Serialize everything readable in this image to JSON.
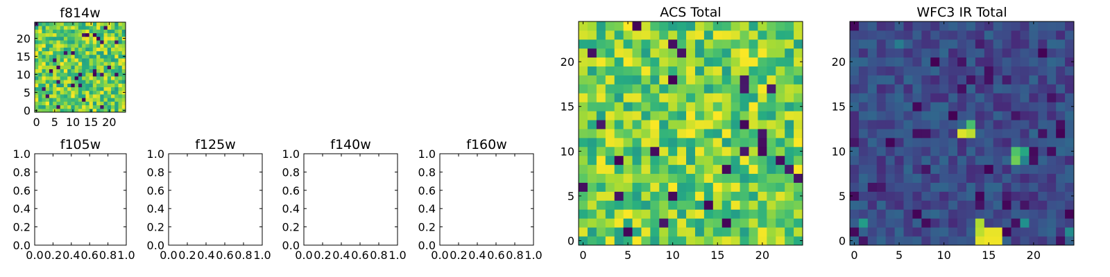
{
  "figure": {
    "background": "#ffffff"
  },
  "chart_data": [
    {
      "id": "f814w",
      "type": "heatmap",
      "title": "f814w",
      "size": 25,
      "colormap": "viridis",
      "value_range": [
        0,
        1
      ],
      "xticks": [
        0,
        5,
        10,
        15,
        20
      ],
      "yticks": [
        0,
        5,
        10,
        15,
        20
      ],
      "texture": "high",
      "seed": 11,
      "dark_fraction": 0.05
    },
    {
      "id": "f105w",
      "type": "empty_axes",
      "title": "f105w",
      "xlim": [
        0,
        1
      ],
      "ylim": [
        0,
        1
      ],
      "xticks": [
        "0.0",
        "0.2",
        "0.4",
        "0.6",
        "0.8",
        "1.0"
      ],
      "yticks": [
        "0.0",
        "0.2",
        "0.4",
        "0.6",
        "0.8",
        "1.0"
      ]
    },
    {
      "id": "f125w",
      "type": "empty_axes",
      "title": "f125w",
      "xlim": [
        0,
        1
      ],
      "ylim": [
        0,
        1
      ],
      "xticks": [
        "0.0",
        "0.2",
        "0.4",
        "0.6",
        "0.8",
        "1.0"
      ],
      "yticks": [
        "0.0",
        "0.2",
        "0.4",
        "0.6",
        "0.8",
        "1.0"
      ]
    },
    {
      "id": "f140w",
      "type": "empty_axes",
      "title": "f140w",
      "xlim": [
        0,
        1
      ],
      "ylim": [
        0,
        1
      ],
      "xticks": [
        "0.0",
        "0.2",
        "0.4",
        "0.6",
        "0.8",
        "1.0"
      ],
      "yticks": [
        "0.0",
        "0.2",
        "0.4",
        "0.6",
        "0.8",
        "1.0"
      ]
    },
    {
      "id": "f160w",
      "type": "empty_axes",
      "title": "f160w",
      "xlim": [
        0,
        1
      ],
      "ylim": [
        0,
        1
      ],
      "xticks": [
        "0.0",
        "0.2",
        "0.4",
        "0.6",
        "0.8",
        "1.0"
      ],
      "yticks": [
        "0.0",
        "0.2",
        "0.4",
        "0.6",
        "0.8",
        "1.0"
      ]
    },
    {
      "id": "acs_total",
      "type": "heatmap",
      "title": "ACS Total",
      "size": 25,
      "colormap": "viridis",
      "value_range": [
        0,
        1
      ],
      "xticks": [
        0,
        5,
        10,
        15,
        20
      ],
      "yticks": [
        0,
        5,
        10,
        15,
        20
      ],
      "texture": "high",
      "seed": 23,
      "dark_fraction": 0.04
    },
    {
      "id": "wfc3_ir_total",
      "type": "heatmap",
      "title": "WFC3 IR Total",
      "size": 25,
      "colormap": "viridis",
      "value_range": [
        0,
        1
      ],
      "xticks": [
        0,
        5,
        10,
        15,
        20
      ],
      "yticks": [
        0,
        5,
        10,
        15,
        20
      ],
      "texture": "low",
      "seed": 37,
      "dark_fraction": 0.06,
      "bright_cells": [
        {
          "col": 14,
          "row": 0,
          "value": 0.96
        },
        {
          "col": 15,
          "row": 0,
          "value": 0.98
        },
        {
          "col": 16,
          "row": 0,
          "value": 0.98
        },
        {
          "col": 15,
          "row": 1,
          "value": 0.97
        },
        {
          "col": 16,
          "row": 1,
          "value": 0.97
        },
        {
          "col": 14,
          "row": 1,
          "value": 0.9
        },
        {
          "col": 14,
          "row": 2,
          "value": 0.88
        },
        {
          "col": 12,
          "row": 12,
          "value": 0.95
        },
        {
          "col": 13,
          "row": 12,
          "value": 0.9
        },
        {
          "col": 13,
          "row": 13,
          "value": 0.7
        },
        {
          "col": 18,
          "row": 9,
          "value": 0.78
        },
        {
          "col": 18,
          "row": 10,
          "value": 0.72
        },
        {
          "col": 19,
          "row": 10,
          "value": 0.6
        },
        {
          "col": 19,
          "row": 9,
          "value": 0.45
        },
        {
          "col": 1,
          "row": 2,
          "value": 0.55
        },
        {
          "col": 5,
          "row": 22,
          "value": 0.42
        },
        {
          "col": 19,
          "row": 2,
          "value": 0.5
        },
        {
          "col": 24,
          "row": 1,
          "value": 0.48
        }
      ]
    }
  ]
}
